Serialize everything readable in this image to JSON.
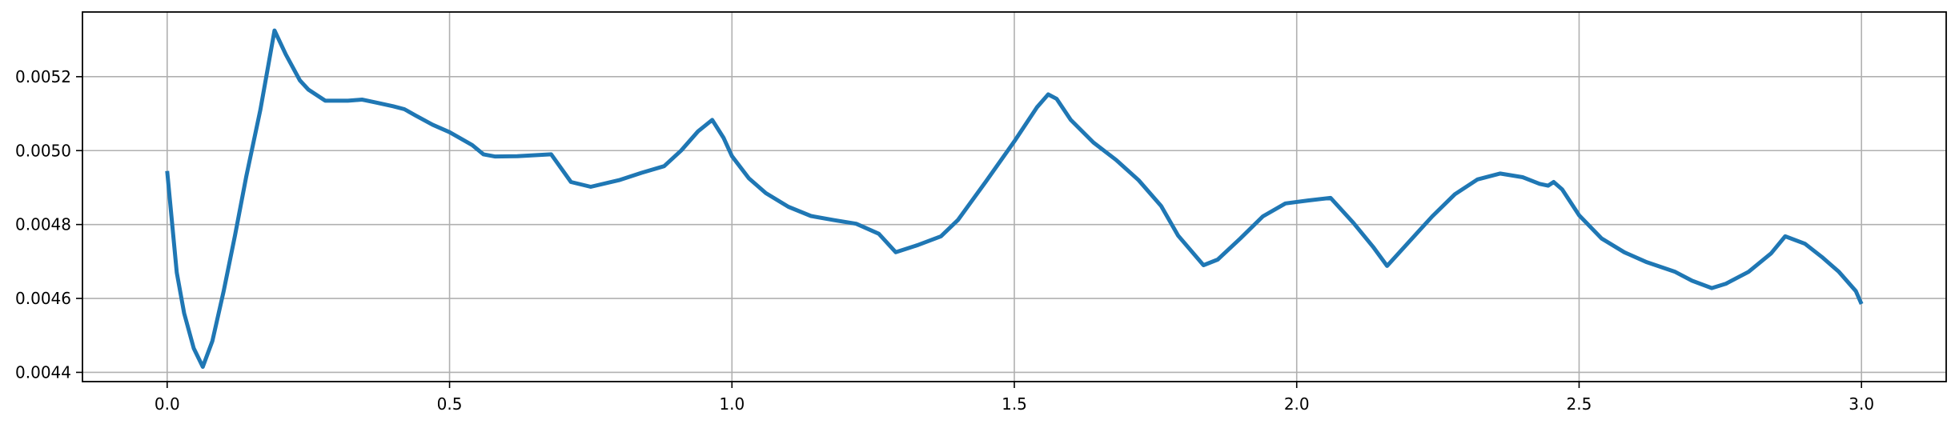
{
  "chart_data": {
    "type": "line",
    "title": "",
    "xlabel": "",
    "ylabel": "",
    "xlim": [
      -0.15,
      3.15
    ],
    "ylim": [
      0.004375,
      0.005375
    ],
    "grid": true,
    "legend": "none",
    "x_ticks": [
      0.0,
      0.5,
      1.0,
      1.5,
      2.0,
      2.5,
      3.0
    ],
    "x_tick_labels": [
      "0.0",
      "0.5",
      "1.0",
      "1.5",
      "2.0",
      "2.5",
      "3.0"
    ],
    "y_ticks": [
      0.0044,
      0.0046,
      0.0048,
      0.005,
      0.0052
    ],
    "y_tick_labels": [
      "0.0044",
      "0.0046",
      "0.0048",
      "0.0050",
      "0.0052"
    ],
    "colors": {
      "line": "#1f77b4",
      "grid": "#b0b0b0",
      "axes": "#000000"
    },
    "series": [
      {
        "color": "#1f77b4",
        "x": [
          0.0,
          0.017,
          0.03,
          0.047,
          0.063,
          0.08,
          0.1,
          0.12,
          0.14,
          0.165,
          0.19,
          0.21,
          0.235,
          0.25,
          0.28,
          0.3,
          0.32,
          0.345,
          0.37,
          0.4,
          0.42,
          0.44,
          0.47,
          0.5,
          0.54,
          0.56,
          0.58,
          0.62,
          0.68,
          0.715,
          0.75,
          0.8,
          0.84,
          0.88,
          0.91,
          0.94,
          0.965,
          0.985,
          1.0,
          1.03,
          1.06,
          1.1,
          1.14,
          1.18,
          1.22,
          1.26,
          1.29,
          1.33,
          1.37,
          1.4,
          1.45,
          1.5,
          1.54,
          1.56,
          1.575,
          1.6,
          1.64,
          1.68,
          1.72,
          1.76,
          1.79,
          1.835,
          1.86,
          1.9,
          1.94,
          1.98,
          2.02,
          2.06,
          2.1,
          2.135,
          2.16,
          2.2,
          2.24,
          2.28,
          2.32,
          2.36,
          2.4,
          2.43,
          2.445,
          2.455,
          2.47,
          2.5,
          2.54,
          2.58,
          2.62,
          2.67,
          2.7,
          2.735,
          2.76,
          2.8,
          2.84,
          2.865,
          2.9,
          2.93,
          2.96,
          2.99,
          3.0
        ],
        "y": [
          0.004945,
          0.00467,
          0.00456,
          0.004465,
          0.004415,
          0.004485,
          0.00462,
          0.00477,
          0.00493,
          0.00511,
          0.005325,
          0.00526,
          0.00519,
          0.005165,
          0.005135,
          0.005135,
          0.005135,
          0.005138,
          0.00513,
          0.00512,
          0.005112,
          0.005095,
          0.00507,
          0.00505,
          0.005015,
          0.00499,
          0.004984,
          0.004985,
          0.00499,
          0.004915,
          0.004902,
          0.00492,
          0.00494,
          0.004958,
          0.005,
          0.005052,
          0.005083,
          0.005035,
          0.004985,
          0.004925,
          0.004885,
          0.004848,
          0.004823,
          0.004812,
          0.004802,
          0.004775,
          0.004725,
          0.004745,
          0.004768,
          0.004812,
          0.004917,
          0.005025,
          0.005117,
          0.005152,
          0.00514,
          0.005083,
          0.005022,
          0.004975,
          0.00492,
          0.00485,
          0.00477,
          0.00469,
          0.004705,
          0.004762,
          0.004822,
          0.004857,
          0.004865,
          0.004872,
          0.004805,
          0.00474,
          0.004688,
          0.004755,
          0.004822,
          0.004882,
          0.004922,
          0.004938,
          0.004928,
          0.00491,
          0.004905,
          0.004915,
          0.004895,
          0.004825,
          0.004762,
          0.004725,
          0.004698,
          0.004672,
          0.004648,
          0.004628,
          0.00464,
          0.004672,
          0.004722,
          0.004768,
          0.004748,
          0.004712,
          0.004672,
          0.00462,
          0.004585
        ]
      }
    ]
  }
}
